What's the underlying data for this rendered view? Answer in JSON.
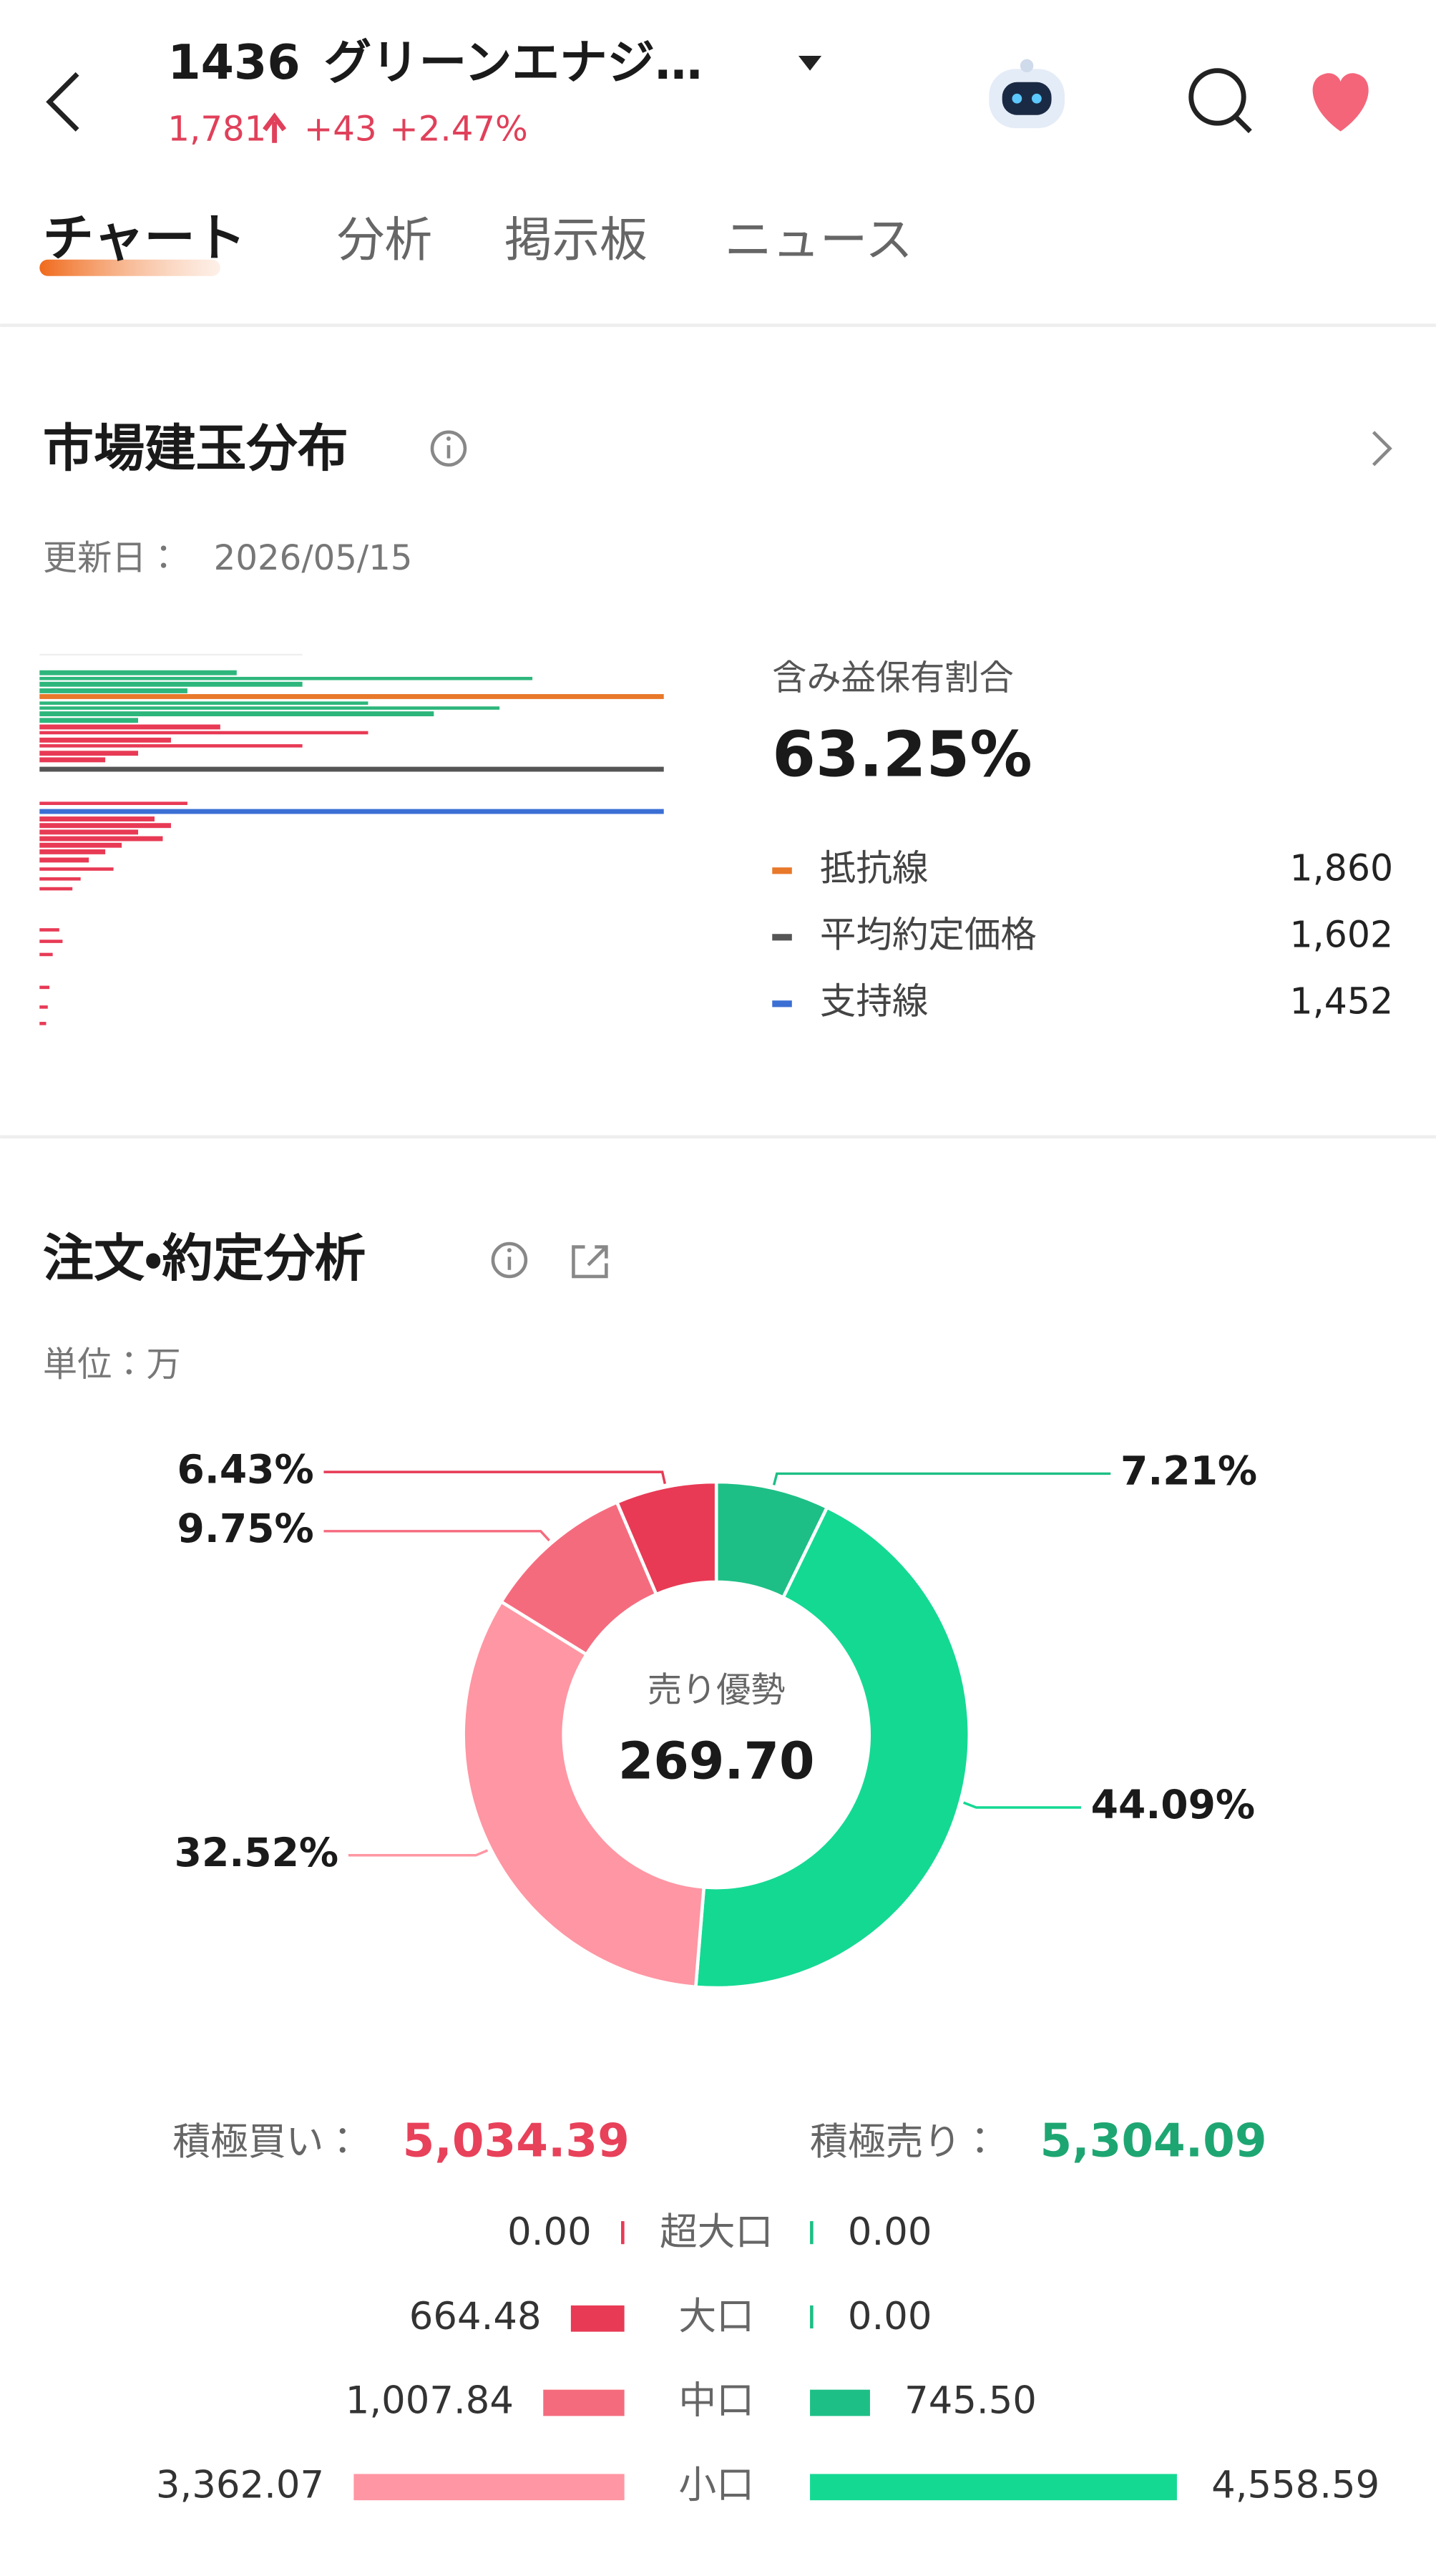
{
  "header": {
    "code": "1436",
    "name": "グリーンエナジ…",
    "price": "1,781",
    "change": "+43",
    "change_pct": "+2.47%"
  },
  "tabs": [
    "チャート",
    "分析",
    "掲示板",
    "ニュース"
  ],
  "chart_data": [
    {
      "type": "level",
      "title": "市場建玉分布",
      "updated_label": "更新日：",
      "updated": "2026/05/15",
      "ratio_label": "含み益保有割合",
      "ratio": "63.25%",
      "ylim": [
        670,
        2000
      ],
      "series": [
        {
          "name": "抵抗線",
          "color": "#e8782a",
          "values": [
            1860
          ],
          "value_labels": [
            "1,860"
          ]
        },
        {
          "name": "平均約定価格",
          "color": "#555555",
          "values": [
            1602
          ],
          "value_labels": [
            "1,602"
          ]
        },
        {
          "name": "支持線",
          "color": "#3b6fd4",
          "values": [
            1452
          ],
          "value_labels": [
            "1,452"
          ]
        }
      ]
    },
    {
      "type": "pie",
      "title": "注文・約定分析",
      "unit": "単位：万",
      "center_label": "売り優勢",
      "center_value": "269.70",
      "values": [
        7.21,
        44.09,
        32.52,
        9.75,
        6.43
      ],
      "value_labels": [
        "7.21%",
        "44.09%",
        "32.52%",
        "9.75%",
        "6.43%"
      ],
      "colors": [
        "#1dbf86",
        "#14d993",
        "#ff96a3",
        "#f56b7e",
        "#e83a55"
      ]
    },
    {
      "type": "bar",
      "buy_label": "積極買い：",
      "buy_total": "5,034.39",
      "sell_label": "積極売り：",
      "sell_total": "5,304.09",
      "categories": [
        "超大口",
        "大口",
        "中口",
        "小口"
      ],
      "series": [
        {
          "colors": [
            "#e83a55",
            "#e83a55",
            "#f56b7e",
            "#ff96a3"
          ],
          "values": [
            0,
            664.48,
            1007.84,
            3362.07
          ],
          "value_labels": [
            "0.00",
            "664.48",
            "1,007.84",
            "3,362.07"
          ]
        },
        {
          "colors": [
            "#1dbf86",
            "#1dbf86",
            "#1dbf86",
            "#14d993"
          ],
          "values": [
            0,
            0,
            745.5,
            4558.59
          ],
          "value_labels": [
            "0.00",
            "0.00",
            "745.50",
            "4,558.59"
          ]
        }
      ]
    }
  ]
}
